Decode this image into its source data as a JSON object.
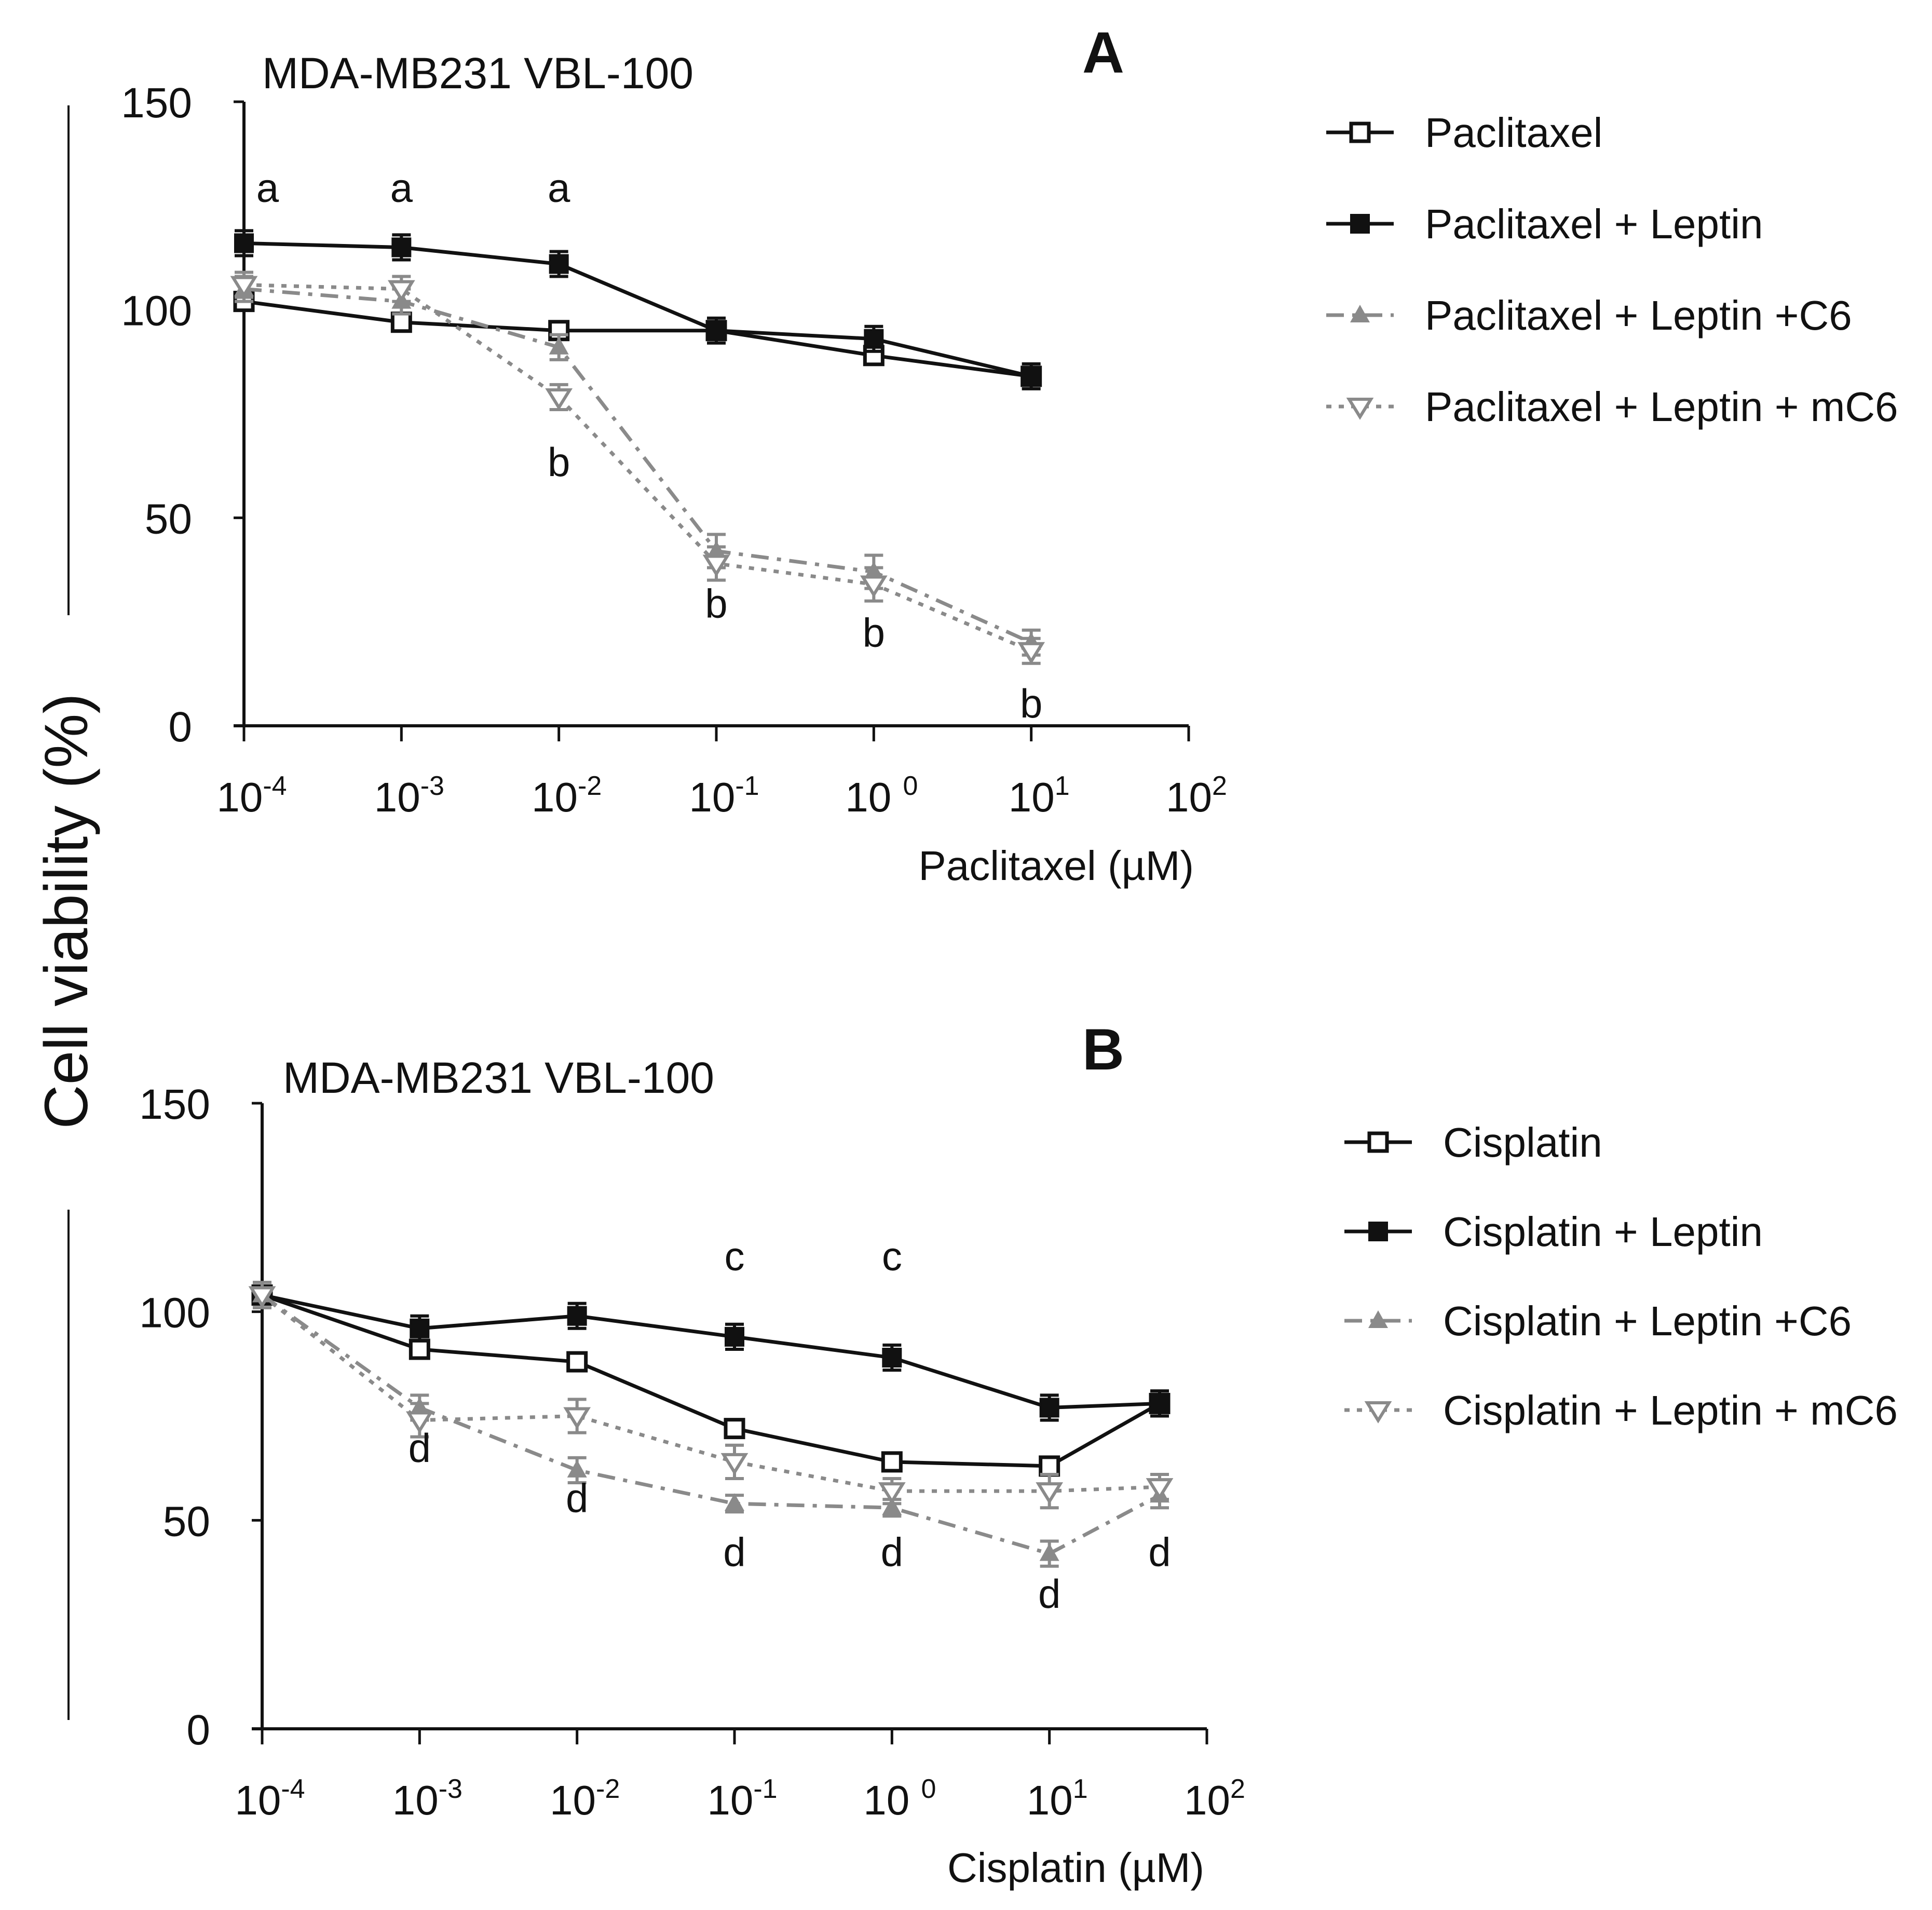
{
  "figure": {
    "ylabel": "Cell viability (%)"
  },
  "colors": {
    "black": "#111111",
    "gray": "#8a8a8a"
  },
  "chart_data": [
    {
      "type": "line",
      "panel_label": "A",
      "title": "MDA-MB231 VBL-100",
      "xlabel": "Paclitaxel (µM)",
      "x_scale": "log",
      "xlim_exp": [
        -4,
        2
      ],
      "ylim": [
        0,
        150
      ],
      "yticks": [
        "0",
        "50",
        "100",
        "150"
      ],
      "xticks": [
        {
          "base": "10",
          "exp": "-4"
        },
        {
          "base": "10",
          "exp": "-3"
        },
        {
          "base": "10",
          "exp": "-2"
        },
        {
          "base": "10",
          "exp": "-1"
        },
        {
          "base": "10 ",
          "exp": "0"
        },
        {
          "base": "10",
          "exp": "1"
        },
        {
          "base": "10",
          "exp": "2"
        }
      ],
      "series": [
        {
          "name": "Paclitaxel",
          "marker": "square-open",
          "style": "solid",
          "color": "#111111",
          "x_exp": [
            -4,
            -3,
            -2,
            -1,
            0,
            1
          ],
          "values": [
            102,
            97,
            95,
            95,
            89,
            84
          ],
          "err": [
            2,
            2,
            2,
            2,
            2,
            2
          ]
        },
        {
          "name": "Paclitaxel + Leptin",
          "marker": "square-filled",
          "style": "solid",
          "color": "#111111",
          "x_exp": [
            -4,
            -3,
            -2,
            -1,
            0,
            1
          ],
          "values": [
            116,
            115,
            111,
            95,
            93,
            84
          ],
          "err": [
            3,
            3,
            3,
            3,
            3,
            3
          ]
        },
        {
          "name": "Paclitaxel + Leptin +C6",
          "marker": "triangle-up",
          "style": "dashdot",
          "color": "#8a8a8a",
          "x_exp": [
            -4,
            -3,
            -2,
            -1,
            0,
            1
          ],
          "values": [
            105,
            102,
            91,
            42,
            37,
            20
          ],
          "err": [
            3,
            3,
            3,
            4,
            4,
            3
          ]
        },
        {
          "name": "Paclitaxel + Leptin + mC6",
          "marker": "triangle-down",
          "style": "dotted",
          "color": "#8a8a8a",
          "x_exp": [
            -4,
            -3,
            -2,
            -1,
            0,
            1
          ],
          "values": [
            106,
            105,
            79,
            39,
            34,
            18
          ],
          "err": [
            3,
            3,
            3,
            4,
            4,
            3
          ]
        }
      ],
      "annotations": [
        {
          "text": "a",
          "x_exp": -3.85,
          "y": 126
        },
        {
          "text": "a",
          "x_exp": -3.0,
          "y": 126
        },
        {
          "text": "a",
          "x_exp": -2.0,
          "y": 126
        },
        {
          "text": "b",
          "x_exp": -2.0,
          "y": 60
        },
        {
          "text": "b",
          "x_exp": -1.0,
          "y": 26
        },
        {
          "text": "b",
          "x_exp": 0.0,
          "y": 19
        },
        {
          "text": "b",
          "x_exp": 1.0,
          "y": 2
        }
      ]
    },
    {
      "type": "line",
      "panel_label": "B",
      "title": "MDA-MB231 VBL-100",
      "xlabel": "Cisplatin (µM)",
      "x_scale": "log",
      "xlim_exp": [
        -4,
        2
      ],
      "ylim": [
        0,
        150
      ],
      "yticks": [
        "0",
        "50",
        "100",
        "150"
      ],
      "xticks": [
        {
          "base": "10",
          "exp": "-4"
        },
        {
          "base": "10",
          "exp": "-3"
        },
        {
          "base": "10",
          "exp": "-2"
        },
        {
          "base": "10",
          "exp": "-1"
        },
        {
          "base": "10 ",
          "exp": "0"
        },
        {
          "base": "10",
          "exp": "1"
        },
        {
          "base": "10",
          "exp": "2"
        }
      ],
      "series": [
        {
          "name": "Cisplatin",
          "marker": "square-open",
          "style": "solid",
          "color": "#111111",
          "x_exp": [
            -4,
            -3,
            -2,
            -1,
            0,
            1,
            1.7
          ],
          "values": [
            104,
            91,
            88,
            72,
            64,
            63,
            78
          ],
          "err": [
            3,
            2,
            2,
            2,
            2,
            2,
            3
          ]
        },
        {
          "name": "Cisplatin + Leptin",
          "marker": "square-filled",
          "style": "solid",
          "color": "#111111",
          "x_exp": [
            -4,
            -3,
            -2,
            -1,
            0,
            1,
            1.7
          ],
          "values": [
            104,
            96,
            99,
            94,
            89,
            77,
            78
          ],
          "err": [
            3,
            3,
            3,
            3,
            3,
            3,
            3
          ]
        },
        {
          "name": "Cisplatin + Leptin +C6",
          "marker": "triangle-up",
          "style": "dashdot",
          "color": "#8a8a8a",
          "x_exp": [
            -4,
            -3,
            -2,
            -1,
            0,
            1,
            1.7
          ],
          "values": [
            104,
            77,
            62,
            54,
            53,
            42,
            56
          ],
          "err": [
            3,
            3,
            3,
            2,
            2,
            3,
            3
          ]
        },
        {
          "name": "Cisplatin + Leptin + mC6",
          "marker": "triangle-down",
          "style": "dotted",
          "color": "#8a8a8a",
          "x_exp": [
            -4,
            -3,
            -2,
            -1,
            0,
            1,
            1.7
          ],
          "values": [
            104,
            74,
            75,
            64,
            57,
            57,
            58
          ],
          "err": [
            3,
            4,
            4,
            4,
            3,
            4,
            3
          ]
        }
      ],
      "annotations": [
        {
          "text": "c",
          "x_exp": -1.0,
          "y": 110
        },
        {
          "text": "c",
          "x_exp": 0.0,
          "y": 110
        },
        {
          "text": "d",
          "x_exp": -3.0,
          "y": 64
        },
        {
          "text": "d",
          "x_exp": -2.0,
          "y": 52
        },
        {
          "text": "d",
          "x_exp": -1.0,
          "y": 39
        },
        {
          "text": "d",
          "x_exp": 0.0,
          "y": 39
        },
        {
          "text": "d",
          "x_exp": 1.0,
          "y": 29
        },
        {
          "text": "d",
          "x_exp": 1.7,
          "y": 39
        }
      ]
    }
  ]
}
